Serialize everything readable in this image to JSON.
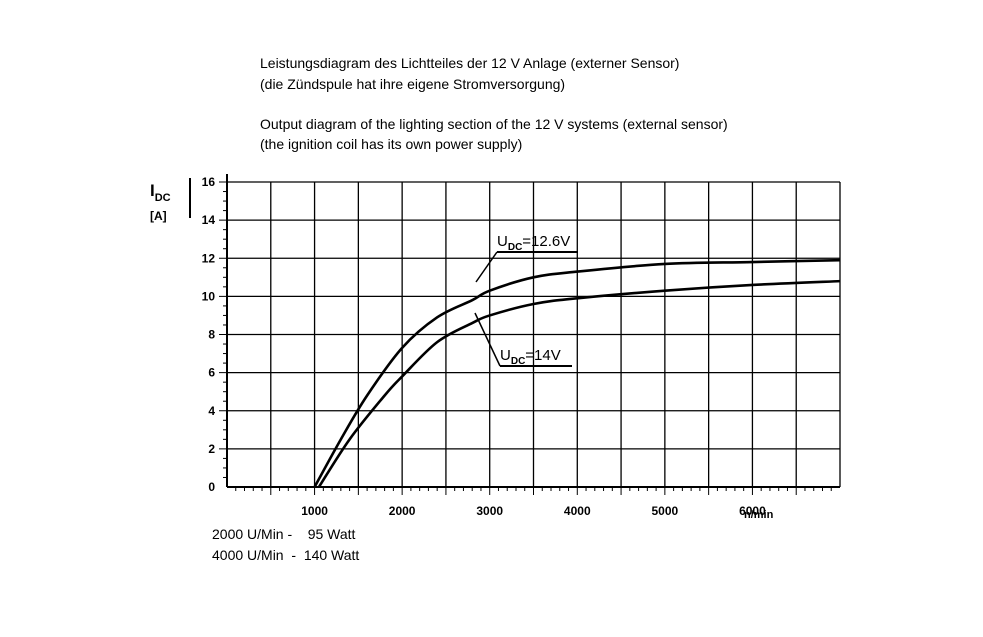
{
  "title_lines": [
    "Leistungsdiagram des Lichtteiles der 12 V Anlage (externer Sensor)",
    "(die Zündspule hat ihre eigene Stromversorgung)",
    "Output diagram of the lighting section of the 12 V systems (external sensor)",
    "(the ignition coil has its own power supply)"
  ],
  "notes": [
    "2000 U/Min -    95 Watt",
    "4000 U/Min  -  140 Watt"
  ],
  "chart_data": {
    "type": "line",
    "ylabel_main": "I",
    "ylabel_sub": "DC",
    "ylabel_unit": "[A]",
    "xlabel": "n/min",
    "xlim": [
      0,
      7000
    ],
    "ylim": [
      0,
      16
    ],
    "x_ticks": [
      1000,
      2000,
      3000,
      4000,
      5000,
      6000
    ],
    "x_tick_labels": [
      "1000",
      "2000",
      "3000",
      "4000",
      "5000",
      "6000"
    ],
    "y_ticks": [
      0,
      2,
      4,
      6,
      8,
      10,
      12,
      14,
      16
    ],
    "y_tick_labels": [
      "0",
      "2",
      "4",
      "6",
      "8",
      "10",
      "12",
      "14",
      "16"
    ],
    "grid": true,
    "series": [
      {
        "label_main": "U",
        "label_sub": "DC",
        "label_value": "=12.6V",
        "x": [
          1000,
          1300,
          1600,
          2000,
          2400,
          2800,
          3000,
          3500,
          4000,
          5000,
          6000,
          7000
        ],
        "y": [
          0,
          2.5,
          4.8,
          7.3,
          8.9,
          9.8,
          10.3,
          11.0,
          11.3,
          11.7,
          11.8,
          11.9
        ]
      },
      {
        "label_main": "U",
        "label_sub": "DC",
        "label_value": "=14V",
        "x": [
          1050,
          1400,
          1800,
          2000,
          2400,
          2800,
          3000,
          3500,
          4000,
          5000,
          6000,
          7000
        ],
        "y": [
          0,
          2.5,
          4.8,
          5.8,
          7.6,
          8.6,
          9.0,
          9.6,
          9.9,
          10.3,
          10.6,
          10.8
        ]
      }
    ]
  }
}
